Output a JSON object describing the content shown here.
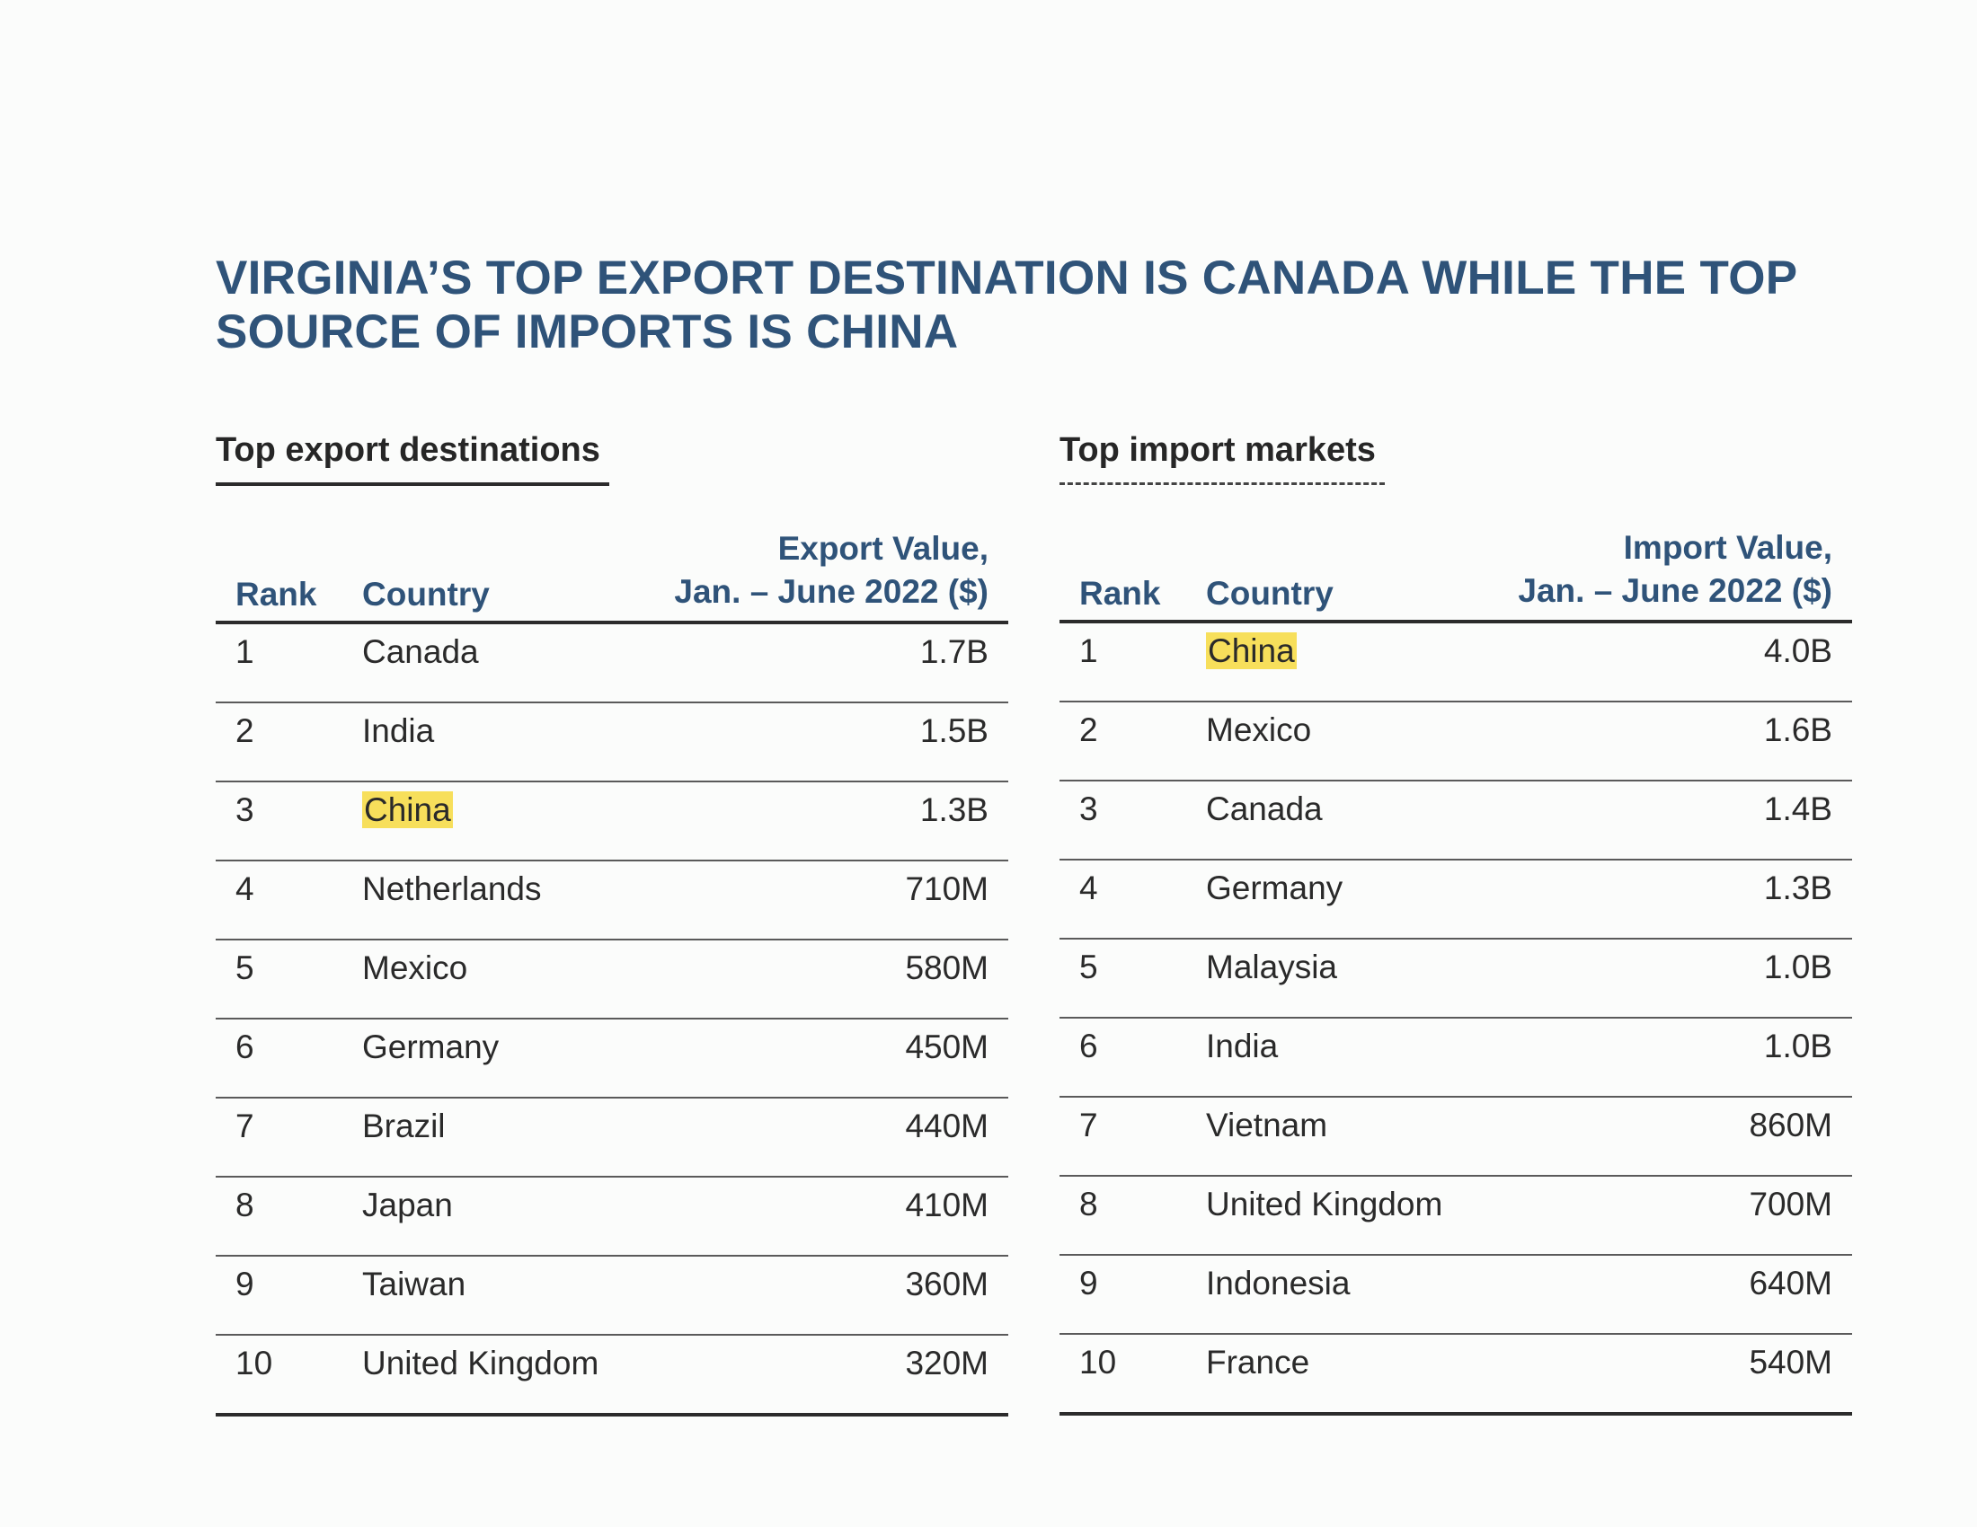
{
  "title": "VIRGINIA’S TOP EXPORT DESTINATION IS CANADA WHILE THE TOP SOURCE OF IMPORTS IS CHINA",
  "highlight_color": "#f7df5b",
  "heading_color": "#2f5379",
  "exports": {
    "section_title": "Top export destinations",
    "col_rank": "Rank",
    "col_country": "Country",
    "col_value_line1": "Export Value,",
    "col_value_line2": "Jan. – June 2022 ($)",
    "rows": [
      {
        "rank": "1",
        "country": "Canada",
        "value": "1.7B",
        "highlight": false
      },
      {
        "rank": "2",
        "country": "India",
        "value": "1.5B",
        "highlight": false
      },
      {
        "rank": "3",
        "country": "China",
        "value": "1.3B",
        "highlight": true
      },
      {
        "rank": "4",
        "country": "Netherlands",
        "value": "710M",
        "highlight": false
      },
      {
        "rank": "5",
        "country": "Mexico",
        "value": "580M",
        "highlight": false
      },
      {
        "rank": "6",
        "country": "Germany",
        "value": "450M",
        "highlight": false
      },
      {
        "rank": "7",
        "country": "Brazil",
        "value": "440M",
        "highlight": false
      },
      {
        "rank": "8",
        "country": "Japan",
        "value": "410M",
        "highlight": false
      },
      {
        "rank": "9",
        "country": "Taiwan",
        "value": "360M",
        "highlight": false
      },
      {
        "rank": "10",
        "country": "United Kingdom",
        "value": "320M",
        "highlight": false
      }
    ]
  },
  "imports": {
    "section_title": "Top import markets",
    "col_rank": "Rank",
    "col_country": "Country",
    "col_value_line1": "Import Value,",
    "col_value_line2": "Jan. – June 2022 ($)",
    "rows": [
      {
        "rank": "1",
        "country": "China",
        "value": "4.0B",
        "highlight": true
      },
      {
        "rank": "2",
        "country": "Mexico",
        "value": "1.6B",
        "highlight": false
      },
      {
        "rank": "3",
        "country": "Canada",
        "value": "1.4B",
        "highlight": false
      },
      {
        "rank": "4",
        "country": "Germany",
        "value": "1.3B",
        "highlight": false
      },
      {
        "rank": "5",
        "country": "Malaysia",
        "value": "1.0B",
        "highlight": false
      },
      {
        "rank": "6",
        "country": "India",
        "value": "1.0B",
        "highlight": false
      },
      {
        "rank": "7",
        "country": "Vietnam",
        "value": "860M",
        "highlight": false
      },
      {
        "rank": "8",
        "country": "United Kingdom",
        "value": "700M",
        "highlight": false
      },
      {
        "rank": "9",
        "country": "Indonesia",
        "value": "640M",
        "highlight": false
      },
      {
        "rank": "10",
        "country": "France",
        "value": "540M",
        "highlight": false
      }
    ]
  }
}
